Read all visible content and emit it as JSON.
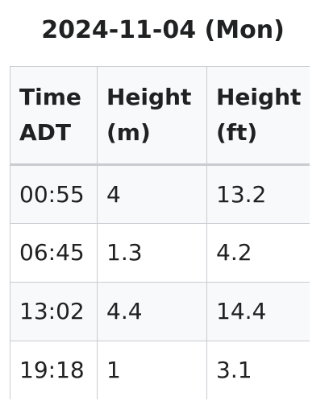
{
  "title": "2024-11-04 (Mon)",
  "columns": [
    {
      "line1": "Time",
      "line2": "ADT"
    },
    {
      "line1": "Height",
      "line2": "(m)"
    },
    {
      "line1": "Height",
      "line2": "(ft)"
    }
  ],
  "rows": [
    {
      "time": "00:55",
      "meters": "4",
      "feet": "13.2"
    },
    {
      "time": "06:45",
      "meters": "1.3",
      "feet": "4.2"
    },
    {
      "time": "13:02",
      "meters": "4.4",
      "feet": "14.4"
    },
    {
      "time": "19:18",
      "meters": "1",
      "feet": "3.1"
    }
  ]
}
